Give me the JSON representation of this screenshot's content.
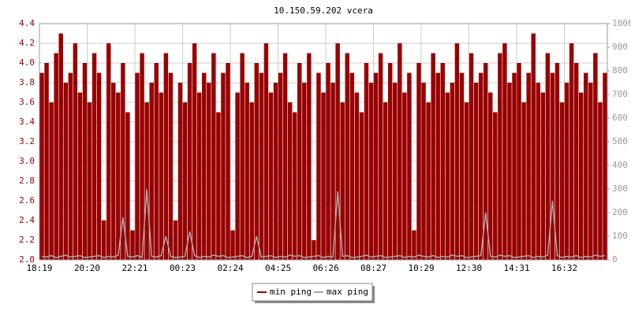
{
  "chart_data": {
    "type": "bar",
    "title": "10.150.59.202 vcera",
    "categories": [
      "18:19",
      null,
      null,
      null,
      null,
      null,
      null,
      null,
      null,
      null,
      "20:20",
      null,
      null,
      null,
      null,
      null,
      null,
      null,
      null,
      null,
      "22:21",
      null,
      null,
      null,
      null,
      null,
      null,
      null,
      null,
      null,
      "00:23",
      null,
      null,
      null,
      null,
      null,
      null,
      null,
      null,
      null,
      "02:24",
      null,
      null,
      null,
      null,
      null,
      null,
      null,
      null,
      null,
      "04:25",
      null,
      null,
      null,
      null,
      null,
      null,
      null,
      null,
      null,
      "06:26",
      null,
      null,
      null,
      null,
      null,
      null,
      null,
      null,
      null,
      "08:27",
      null,
      null,
      null,
      null,
      null,
      null,
      null,
      null,
      null,
      "10:29",
      null,
      null,
      null,
      null,
      null,
      null,
      null,
      null,
      null,
      "12:30",
      null,
      null,
      null,
      null,
      null,
      null,
      null,
      null,
      null,
      "14:31",
      null,
      null,
      null,
      null,
      null,
      null,
      null,
      null,
      null,
      "16:32",
      null,
      null,
      null,
      null,
      null,
      null,
      null,
      null
    ],
    "series": [
      {
        "name": "min ping",
        "type": "bar",
        "color": "#990000",
        "axis": "y",
        "values": [
          3.9,
          4.0,
          3.6,
          4.1,
          4.3,
          3.8,
          3.9,
          4.2,
          3.7,
          4.0,
          3.6,
          4.1,
          3.9,
          2.4,
          4.2,
          3.8,
          3.7,
          4.0,
          3.5,
          2.3,
          3.9,
          4.1,
          3.6,
          3.8,
          4.0,
          3.7,
          4.1,
          3.9,
          2.4,
          3.8,
          3.6,
          4.0,
          4.2,
          3.7,
          3.9,
          3.8,
          4.1,
          3.5,
          3.9,
          4.0,
          2.3,
          3.7,
          4.1,
          3.8,
          3.6,
          4.0,
          3.9,
          4.2,
          3.7,
          3.8,
          3.9,
          4.1,
          3.6,
          3.5,
          4.0,
          3.8,
          4.1,
          2.2,
          3.9,
          3.7,
          4.0,
          3.8,
          4.2,
          3.6,
          4.1,
          3.9,
          3.7,
          3.5,
          4.0,
          3.8,
          3.9,
          4.1,
          3.6,
          4.0,
          3.8,
          4.2,
          3.7,
          3.9,
          2.3,
          4.0,
          3.8,
          3.6,
          4.1,
          3.9,
          4.0,
          3.7,
          3.8,
          4.2,
          3.9,
          3.6,
          4.1,
          3.8,
          3.9,
          4.0,
          3.7,
          3.5,
          4.1,
          4.2,
          3.8,
          3.9,
          4.0,
          3.6,
          3.9,
          4.3,
          3.8,
          3.7,
          4.1,
          3.9,
          4.0,
          3.6,
          3.8,
          4.2,
          4.0,
          3.7,
          3.9,
          3.8,
          4.1,
          3.6,
          3.9
        ]
      },
      {
        "name": "max ping",
        "type": "line",
        "color": "#aaaaaa",
        "axis": "y2",
        "values": [
          15,
          12,
          18,
          10,
          15,
          20,
          12,
          15,
          18,
          10,
          12,
          15,
          18,
          10,
          15,
          12,
          20,
          180,
          15,
          12,
          18,
          10,
          300,
          15,
          12,
          18,
          100,
          15,
          10,
          12,
          15,
          120,
          18,
          10,
          15,
          12,
          20,
          15,
          18,
          10,
          12,
          15,
          18,
          10,
          15,
          100,
          12,
          15,
          18,
          10,
          15,
          12,
          20,
          15,
          18,
          10,
          12,
          15,
          18,
          10,
          15,
          12,
          290,
          15,
          18,
          10,
          12,
          15,
          20,
          12,
          15,
          18,
          10,
          12,
          15,
          18,
          10,
          15,
          12,
          20,
          15,
          12,
          18,
          10,
          15,
          12,
          20,
          15,
          18,
          10,
          12,
          15,
          18,
          200,
          15,
          12,
          20,
          15,
          18,
          10,
          12,
          15,
          18,
          10,
          15,
          12,
          20,
          250,
          18,
          10,
          15,
          12,
          18,
          10,
          15,
          12,
          20,
          15,
          18
        ]
      }
    ],
    "ylim": [
      2.0,
      4.4
    ],
    "yticks": [
      {
        "value": 2.0,
        "label": "2.0"
      },
      2.2,
      2.4,
      2.6,
      2.8,
      {
        "value": 3.0,
        "label": "3.0"
      },
      3.2,
      3.4,
      3.6,
      3.8,
      {
        "value": 4.0,
        "label": "4.0"
      },
      4.2,
      4.4
    ],
    "y2lim": [
      0,
      1000
    ],
    "y2ticks": [
      0,
      100,
      200,
      300,
      400,
      500,
      600,
      700,
      800,
      900,
      1000
    ],
    "grid": true
  }
}
